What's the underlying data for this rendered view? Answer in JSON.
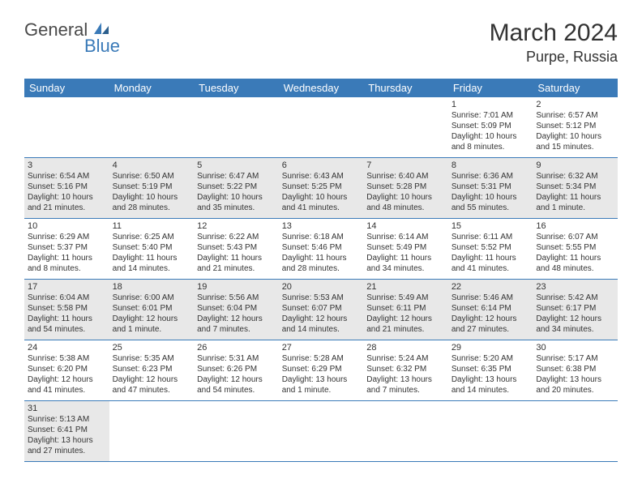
{
  "logo": {
    "text1": "General",
    "text2": "Blue"
  },
  "header": {
    "month": "March 2024",
    "location": "Purpe, Russia"
  },
  "colors": {
    "header_bg": "#3a7ab8",
    "header_text": "#ffffff",
    "row_alt_bg": "#e8e8e8",
    "row_bg": "#ffffff",
    "border": "#3a7ab8",
    "text": "#333333",
    "logo_blue": "#3a7ab8"
  },
  "weekdays": [
    "Sunday",
    "Monday",
    "Tuesday",
    "Wednesday",
    "Thursday",
    "Friday",
    "Saturday"
  ],
  "weeks": [
    [
      null,
      null,
      null,
      null,
      null,
      {
        "n": "1",
        "sr": "Sunrise: 7:01 AM",
        "ss": "Sunset: 5:09 PM",
        "d1": "Daylight: 10 hours",
        "d2": "and 8 minutes."
      },
      {
        "n": "2",
        "sr": "Sunrise: 6:57 AM",
        "ss": "Sunset: 5:12 PM",
        "d1": "Daylight: 10 hours",
        "d2": "and 15 minutes."
      }
    ],
    [
      {
        "n": "3",
        "sr": "Sunrise: 6:54 AM",
        "ss": "Sunset: 5:16 PM",
        "d1": "Daylight: 10 hours",
        "d2": "and 21 minutes."
      },
      {
        "n": "4",
        "sr": "Sunrise: 6:50 AM",
        "ss": "Sunset: 5:19 PM",
        "d1": "Daylight: 10 hours",
        "d2": "and 28 minutes."
      },
      {
        "n": "5",
        "sr": "Sunrise: 6:47 AM",
        "ss": "Sunset: 5:22 PM",
        "d1": "Daylight: 10 hours",
        "d2": "and 35 minutes."
      },
      {
        "n": "6",
        "sr": "Sunrise: 6:43 AM",
        "ss": "Sunset: 5:25 PM",
        "d1": "Daylight: 10 hours",
        "d2": "and 41 minutes."
      },
      {
        "n": "7",
        "sr": "Sunrise: 6:40 AM",
        "ss": "Sunset: 5:28 PM",
        "d1": "Daylight: 10 hours",
        "d2": "and 48 minutes."
      },
      {
        "n": "8",
        "sr": "Sunrise: 6:36 AM",
        "ss": "Sunset: 5:31 PM",
        "d1": "Daylight: 10 hours",
        "d2": "and 55 minutes."
      },
      {
        "n": "9",
        "sr": "Sunrise: 6:32 AM",
        "ss": "Sunset: 5:34 PM",
        "d1": "Daylight: 11 hours",
        "d2": "and 1 minute."
      }
    ],
    [
      {
        "n": "10",
        "sr": "Sunrise: 6:29 AM",
        "ss": "Sunset: 5:37 PM",
        "d1": "Daylight: 11 hours",
        "d2": "and 8 minutes."
      },
      {
        "n": "11",
        "sr": "Sunrise: 6:25 AM",
        "ss": "Sunset: 5:40 PM",
        "d1": "Daylight: 11 hours",
        "d2": "and 14 minutes."
      },
      {
        "n": "12",
        "sr": "Sunrise: 6:22 AM",
        "ss": "Sunset: 5:43 PM",
        "d1": "Daylight: 11 hours",
        "d2": "and 21 minutes."
      },
      {
        "n": "13",
        "sr": "Sunrise: 6:18 AM",
        "ss": "Sunset: 5:46 PM",
        "d1": "Daylight: 11 hours",
        "d2": "and 28 minutes."
      },
      {
        "n": "14",
        "sr": "Sunrise: 6:14 AM",
        "ss": "Sunset: 5:49 PM",
        "d1": "Daylight: 11 hours",
        "d2": "and 34 minutes."
      },
      {
        "n": "15",
        "sr": "Sunrise: 6:11 AM",
        "ss": "Sunset: 5:52 PM",
        "d1": "Daylight: 11 hours",
        "d2": "and 41 minutes."
      },
      {
        "n": "16",
        "sr": "Sunrise: 6:07 AM",
        "ss": "Sunset: 5:55 PM",
        "d1": "Daylight: 11 hours",
        "d2": "and 48 minutes."
      }
    ],
    [
      {
        "n": "17",
        "sr": "Sunrise: 6:04 AM",
        "ss": "Sunset: 5:58 PM",
        "d1": "Daylight: 11 hours",
        "d2": "and 54 minutes."
      },
      {
        "n": "18",
        "sr": "Sunrise: 6:00 AM",
        "ss": "Sunset: 6:01 PM",
        "d1": "Daylight: 12 hours",
        "d2": "and 1 minute."
      },
      {
        "n": "19",
        "sr": "Sunrise: 5:56 AM",
        "ss": "Sunset: 6:04 PM",
        "d1": "Daylight: 12 hours",
        "d2": "and 7 minutes."
      },
      {
        "n": "20",
        "sr": "Sunrise: 5:53 AM",
        "ss": "Sunset: 6:07 PM",
        "d1": "Daylight: 12 hours",
        "d2": "and 14 minutes."
      },
      {
        "n": "21",
        "sr": "Sunrise: 5:49 AM",
        "ss": "Sunset: 6:11 PM",
        "d1": "Daylight: 12 hours",
        "d2": "and 21 minutes."
      },
      {
        "n": "22",
        "sr": "Sunrise: 5:46 AM",
        "ss": "Sunset: 6:14 PM",
        "d1": "Daylight: 12 hours",
        "d2": "and 27 minutes."
      },
      {
        "n": "23",
        "sr": "Sunrise: 5:42 AM",
        "ss": "Sunset: 6:17 PM",
        "d1": "Daylight: 12 hours",
        "d2": "and 34 minutes."
      }
    ],
    [
      {
        "n": "24",
        "sr": "Sunrise: 5:38 AM",
        "ss": "Sunset: 6:20 PM",
        "d1": "Daylight: 12 hours",
        "d2": "and 41 minutes."
      },
      {
        "n": "25",
        "sr": "Sunrise: 5:35 AM",
        "ss": "Sunset: 6:23 PM",
        "d1": "Daylight: 12 hours",
        "d2": "and 47 minutes."
      },
      {
        "n": "26",
        "sr": "Sunrise: 5:31 AM",
        "ss": "Sunset: 6:26 PM",
        "d1": "Daylight: 12 hours",
        "d2": "and 54 minutes."
      },
      {
        "n": "27",
        "sr": "Sunrise: 5:28 AM",
        "ss": "Sunset: 6:29 PM",
        "d1": "Daylight: 13 hours",
        "d2": "and 1 minute."
      },
      {
        "n": "28",
        "sr": "Sunrise: 5:24 AM",
        "ss": "Sunset: 6:32 PM",
        "d1": "Daylight: 13 hours",
        "d2": "and 7 minutes."
      },
      {
        "n": "29",
        "sr": "Sunrise: 5:20 AM",
        "ss": "Sunset: 6:35 PM",
        "d1": "Daylight: 13 hours",
        "d2": "and 14 minutes."
      },
      {
        "n": "30",
        "sr": "Sunrise: 5:17 AM",
        "ss": "Sunset: 6:38 PM",
        "d1": "Daylight: 13 hours",
        "d2": "and 20 minutes."
      }
    ],
    [
      {
        "n": "31",
        "sr": "Sunrise: 5:13 AM",
        "ss": "Sunset: 6:41 PM",
        "d1": "Daylight: 13 hours",
        "d2": "and 27 minutes."
      },
      null,
      null,
      null,
      null,
      null,
      null
    ]
  ]
}
